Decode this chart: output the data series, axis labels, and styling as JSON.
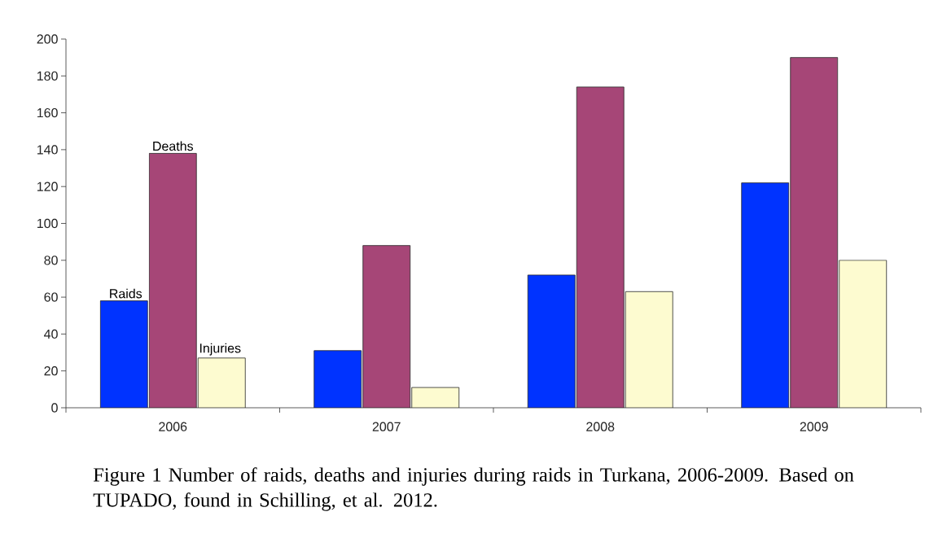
{
  "chart_data": {
    "type": "bar",
    "categories": [
      "2006",
      "2007",
      "2008",
      "2009"
    ],
    "series": [
      {
        "name": "Raids",
        "color": "#0033ff",
        "values": [
          58,
          31,
          72,
          122
        ]
      },
      {
        "name": "Deaths",
        "color": "#a64677",
        "values": [
          138,
          88,
          174,
          190
        ]
      },
      {
        "name": "Injuries",
        "color": "#fdfbd0",
        "values": [
          27,
          11,
          63,
          80
        ]
      }
    ],
    "ylim": [
      0,
      200
    ],
    "yticks": [
      0,
      20,
      40,
      60,
      80,
      100,
      120,
      140,
      160,
      180,
      200
    ],
    "grid": false,
    "legend": false,
    "annotations": [
      "Figure 1 Number of raids, deaths and injuries during raids in Turkana, 2006-2009. Based on TUPADO, found in Schilling, et al. 2012."
    ]
  }
}
